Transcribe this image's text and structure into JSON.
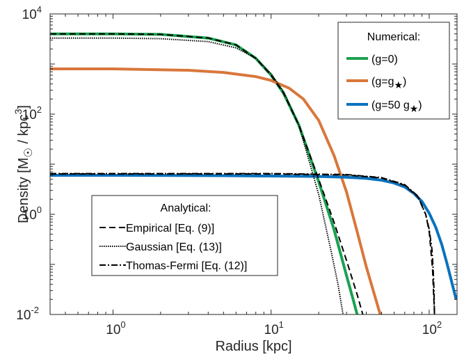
{
  "chart_data": {
    "type": "line",
    "title": "",
    "xlabel": "Radius [kpc]",
    "ylabel": "Density [M⊙ / kpc³]",
    "xscale": "log",
    "yscale": "log",
    "xlim": [
      0.4,
      150
    ],
    "ylim": [
      0.01,
      10000
    ],
    "grid": false,
    "x_ticks": [
      {
        "base": "10",
        "exp": "0",
        "value": 1
      },
      {
        "base": "10",
        "exp": "1",
        "value": 10
      },
      {
        "base": "10",
        "exp": "2",
        "value": 100
      }
    ],
    "y_ticks": [
      {
        "base": "10",
        "exp": "-2",
        "value": 0.01
      },
      {
        "base": "10",
        "exp": "0",
        "value": 1
      },
      {
        "base": "10",
        "exp": "2",
        "value": 100
      },
      {
        "base": "10",
        "exp": "4",
        "value": 10000
      }
    ],
    "legends": [
      {
        "title": "Numerical:",
        "placement": "top-right",
        "entries": [
          {
            "label": "(g=0)",
            "color": "#1aa150",
            "style": "solid"
          },
          {
            "label": "(g=g*)",
            "color": "#d9773b",
            "style": "solid"
          },
          {
            "label": "(g=50 g*)",
            "color": "#0a72bd",
            "style": "solid"
          }
        ]
      },
      {
        "title": "Analytical:",
        "placement": "bottom-left",
        "entries": [
          {
            "label": "Empirical [Eq. (9)]",
            "color": "#000000",
            "style": "dashed"
          },
          {
            "label": "Gaussian [Eq. (13)]",
            "color": "#000000",
            "style": "dotted"
          },
          {
            "label": "Thomas-Fermi [Eq. (12)]",
            "color": "#000000",
            "style": "dash-dot"
          }
        ]
      }
    ],
    "series": [
      {
        "name": "(g=0)",
        "kind": "numerical",
        "color": "#1aa150",
        "style": "solid",
        "x": [
          0.4,
          1,
          2,
          4,
          6,
          8,
          10,
          12,
          15,
          20,
          25,
          30,
          33,
          35
        ],
        "y": [
          4000,
          4000,
          3900,
          3300,
          2400,
          1300,
          600,
          260,
          60,
          4.5,
          0.5,
          0.06,
          0.02,
          0.01
        ]
      },
      {
        "name": "(g=g*)",
        "kind": "numerical",
        "color": "#d9773b",
        "style": "solid",
        "x": [
          0.4,
          1,
          3,
          5,
          8,
          10,
          13,
          16,
          20,
          25,
          30,
          35,
          40,
          45,
          49
        ],
        "y": [
          800,
          800,
          750,
          680,
          560,
          470,
          330,
          200,
          75,
          15,
          2.8,
          0.45,
          0.09,
          0.025,
          0.01
        ]
      },
      {
        "name": "(g=50 g*)",
        "kind": "numerical",
        "color": "#0a72bd",
        "style": "solid",
        "x": [
          0.4,
          1,
          5,
          10,
          20,
          30,
          40,
          50,
          60,
          70,
          80,
          90,
          100,
          110,
          120,
          130,
          140,
          148
        ],
        "y": [
          6,
          6,
          5.9,
          5.8,
          5.7,
          5.5,
          5.2,
          4.8,
          4.2,
          3.5,
          2.6,
          1.8,
          1.05,
          0.55,
          0.25,
          0.1,
          0.04,
          0.02
        ]
      },
      {
        "name": "Empirical [Eq. (9)], g=0",
        "kind": "analytical",
        "color": "#000000",
        "style": "dashed",
        "x": [
          0.4,
          1,
          2,
          4,
          6,
          8,
          10,
          12,
          15,
          20,
          25,
          30,
          35,
          38
        ],
        "y": [
          4000,
          4000,
          3900,
          3300,
          2400,
          1300,
          600,
          260,
          60,
          5,
          0.7,
          0.12,
          0.025,
          0.01
        ]
      },
      {
        "name": "Gaussian [Eq. (13)], g=0",
        "kind": "analytical",
        "color": "#000000",
        "style": "dotted",
        "x": [
          0.4,
          1,
          2,
          4,
          6,
          8,
          10,
          12,
          15,
          20,
          24,
          26.5,
          28.5
        ],
        "y": [
          3300,
          3300,
          3200,
          2800,
          2100,
          1300,
          640,
          280,
          60,
          2.5,
          0.18,
          0.04,
          0.01
        ]
      },
      {
        "name": "Empirical [Eq. (9)], g=50 g*",
        "kind": "analytical",
        "color": "#000000",
        "style": "dashed",
        "x": [
          0.4,
          1,
          10,
          30,
          50,
          70,
          85,
          95,
          100,
          105,
          108
        ],
        "y": [
          6.4,
          6.4,
          6.4,
          6.1,
          5.3,
          3.8,
          2.2,
          1.0,
          0.45,
          0.08,
          0.01
        ]
      },
      {
        "name": "Thomas-Fermi [Eq. (12)], g=50 g*",
        "kind": "analytical",
        "color": "#000000",
        "style": "dash-dot",
        "x": [
          0.4,
          1,
          10,
          30,
          50,
          70,
          85,
          95,
          100,
          104,
          106,
          107,
          108
        ],
        "y": [
          6.5,
          6.5,
          6.5,
          6.2,
          5.4,
          3.9,
          2.3,
          1.0,
          0.5,
          0.2,
          0.08,
          0.035,
          0.01
        ]
      }
    ]
  }
}
